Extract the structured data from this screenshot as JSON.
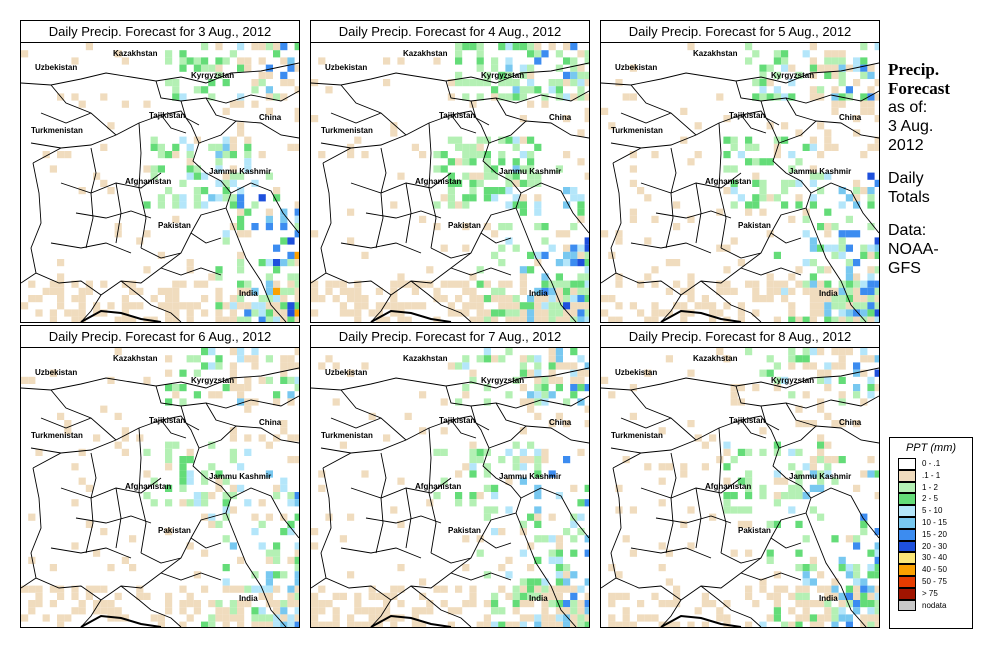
{
  "panels": [
    {
      "title": "Daily Precip. Forecast for  3 Aug., 2012",
      "rainfall": 0.55,
      "north_rain": 0.35,
      "heavy_rain": 0.55
    },
    {
      "title": "Daily Precip. Forecast for  4 Aug., 2012",
      "rainfall": 0.75,
      "north_rain": 0.55,
      "heavy_rain": 0.45
    },
    {
      "title": "Daily Precip. Forecast for  5 Aug., 2012",
      "rainfall": 0.7,
      "north_rain": 0.45,
      "heavy_rain": 0.35
    },
    {
      "title": "Daily Precip. Forecast for  6 Aug., 2012",
      "rainfall": 0.45,
      "north_rain": 0.3,
      "heavy_rain": 0.3
    },
    {
      "title": "Daily Precip. Forecast for  7 Aug., 2012",
      "rainfall": 0.5,
      "north_rain": 0.35,
      "heavy_rain": 0.35
    },
    {
      "title": "Daily Precip. Forecast for  8 Aug., 2012",
      "rainfall": 0.55,
      "north_rain": 0.3,
      "heavy_rain": 0.35
    }
  ],
  "countries": {
    "uzbekistan": "Uzbekistan",
    "kazakhstan": "Kazakhstan",
    "kyrgyzstan": "Kyrgyzstan",
    "tajikistan": "Tajikistan",
    "china": "China",
    "turkmenistan": "Turkmenistan",
    "afghanistan": "Afghanistan",
    "jammu_kashmir": "Jammu Kashmir",
    "pakistan": "Pakistan",
    "india": "India"
  },
  "side": {
    "title_line1": "Precip.",
    "title_line2": "Forecast",
    "as_of_line1": "as of:",
    "as_of_line2": "3 Aug.",
    "as_of_line3": "2012",
    "totals_line1": "Daily",
    "totals_line2": "Totals",
    "data_line1": "Data:",
    "data_line2": "NOAA-",
    "data_line3": "GFS"
  },
  "legend": {
    "title": "PPT (mm)",
    "items": [
      {
        "label": "0 - .1",
        "color": "#ffffff"
      },
      {
        "label": ".1 - 1",
        "color": "#f0dcbe"
      },
      {
        "label": "1 - 2",
        "color": "#b4f0b4"
      },
      {
        "label": "2 - 5",
        "color": "#64dc78"
      },
      {
        "label": "5 - 10",
        "color": "#b4e6fa"
      },
      {
        "label": "10 - 15",
        "color": "#78c8f0"
      },
      {
        "label": "15 - 20",
        "color": "#3c8cf0"
      },
      {
        "label": "20 - 30",
        "color": "#1e50dc"
      },
      {
        "label": "30 - 40",
        "color": "#fae678"
      },
      {
        "label": "40 - 50",
        "color": "#faa000"
      },
      {
        "label": "50 - 75",
        "color": "#e63c00"
      },
      {
        "label": "> 75",
        "color": "#a01400"
      },
      {
        "label": "nodata",
        "color": "#c8c8c8"
      }
    ]
  }
}
